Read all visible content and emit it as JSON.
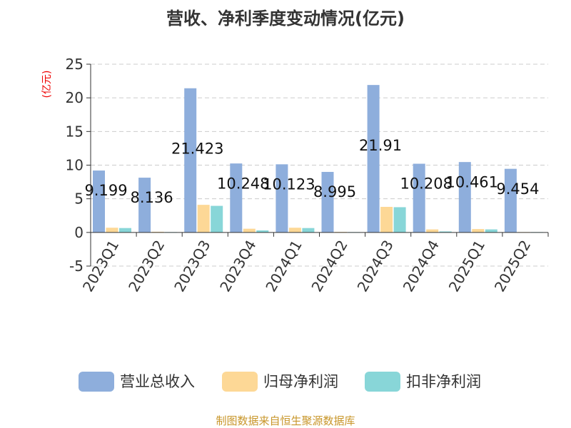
{
  "chart_data": {
    "type": "bar",
    "title": "营收、净利季度变动情况(亿元)",
    "ylabel": "(亿元)",
    "ylim": [
      -5,
      25
    ],
    "yticks": [
      -5,
      0,
      5,
      10,
      15,
      20,
      25
    ],
    "grid": true,
    "legend_position": "bottom",
    "categories": [
      "2023Q1",
      "2023Q2",
      "2023Q3",
      "2023Q4",
      "2024Q1",
      "2024Q2",
      "2024Q3",
      "2024Q4",
      "2025Q1",
      "2025Q2"
    ],
    "series": [
      {
        "name": "营业总收入",
        "color": "#8eaedc",
        "values": [
          9.199,
          8.136,
          21.423,
          10.248,
          10.123,
          8.995,
          21.91,
          10.208,
          10.461,
          9.454
        ],
        "labels": [
          "9.199",
          "8.136",
          "21.423",
          "10.248",
          "10.123",
          "8.995",
          "21.91",
          "10.208",
          "10.461",
          "9.454"
        ]
      },
      {
        "name": "归母净利润",
        "color": "#fdd896",
        "values": [
          0.7,
          0.1,
          4.1,
          0.55,
          0.7,
          0.08,
          3.8,
          0.45,
          0.5,
          0.05
        ]
      },
      {
        "name": "扣非净利润",
        "color": "#88d6d8",
        "values": [
          0.65,
          0.05,
          3.95,
          0.3,
          0.65,
          0.05,
          3.75,
          0.15,
          0.45,
          0.05
        ]
      }
    ]
  },
  "footer": "制图数据来自恒生聚源数据库"
}
